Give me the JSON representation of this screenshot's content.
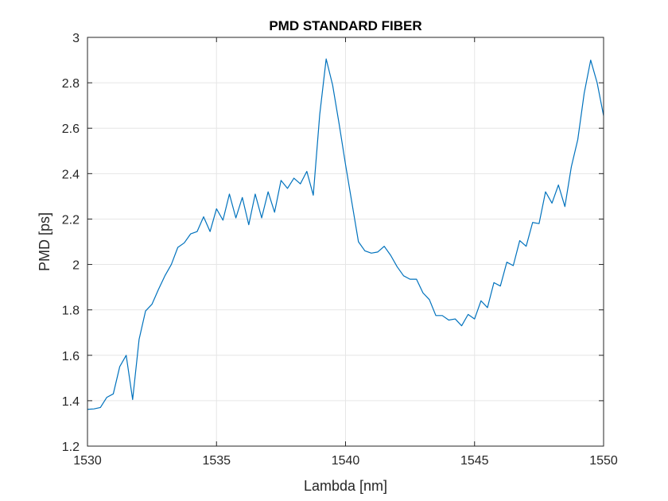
{
  "chart_data": {
    "type": "line",
    "title": "PMD STANDARD FIBER",
    "xlabel": "Lambda [nm]",
    "ylabel": "PMD [ps]",
    "xlim": [
      1530,
      1550
    ],
    "ylim": [
      1.2,
      3.0
    ],
    "x_ticks": [
      1530,
      1535,
      1540,
      1545,
      1550
    ],
    "y_ticks": [
      1.2,
      1.4,
      1.6,
      1.8,
      2,
      2.2,
      2.4,
      2.6,
      2.8,
      3
    ],
    "x_tick_labels": [
      "1530",
      "1535",
      "1540",
      "1545",
      "1550"
    ],
    "y_tick_labels": [
      "1.2",
      "1.4",
      "1.6",
      "1.8",
      "2",
      "2.2",
      "2.4",
      "2.6",
      "2.8",
      "3"
    ],
    "grid": true,
    "line_color": "#0072BD",
    "series": [
      {
        "x": [
          1530.0,
          1530.25,
          1530.5,
          1530.75,
          1531.0,
          1531.25,
          1531.5,
          1531.75,
          1532.0,
          1532.25,
          1532.5,
          1532.75,
          1533.0,
          1533.25,
          1533.5,
          1533.75,
          1534.0,
          1534.25,
          1534.5,
          1534.75,
          1535.0,
          1535.25,
          1535.5,
          1535.75,
          1536.0,
          1536.25,
          1536.5,
          1536.75,
          1537.0,
          1537.25,
          1537.5,
          1537.75,
          1538.0,
          1538.25,
          1538.5,
          1538.75,
          1539.0,
          1539.25,
          1539.5,
          1539.75,
          1540.0,
          1540.25,
          1540.5,
          1540.75,
          1541.0,
          1541.25,
          1541.5,
          1541.75,
          1542.0,
          1542.25,
          1542.5,
          1542.75,
          1543.0,
          1543.25,
          1543.5,
          1543.75,
          1544.0,
          1544.25,
          1544.5,
          1544.75,
          1545.0,
          1545.25,
          1545.5,
          1545.75,
          1546.0,
          1546.25,
          1546.5,
          1546.75,
          1547.0,
          1547.25,
          1547.5,
          1547.75,
          1548.0,
          1548.25,
          1548.5,
          1548.75,
          1549.0,
          1549.25,
          1549.5,
          1549.75,
          1550.0
        ],
        "y": [
          1.362,
          1.364,
          1.37,
          1.415,
          1.43,
          1.55,
          1.6,
          1.405,
          1.67,
          1.795,
          1.825,
          1.89,
          1.95,
          2.0,
          2.075,
          2.095,
          2.135,
          2.145,
          2.21,
          2.145,
          2.245,
          2.195,
          2.31,
          2.205,
          2.295,
          2.175,
          2.31,
          2.205,
          2.32,
          2.23,
          2.37,
          2.335,
          2.38,
          2.355,
          2.41,
          2.305,
          2.66,
          2.905,
          2.79,
          2.62,
          2.44,
          2.27,
          2.1,
          2.06,
          2.05,
          2.055,
          2.08,
          2.04,
          1.99,
          1.95,
          1.935,
          1.935,
          1.875,
          1.845,
          1.775,
          1.775,
          1.755,
          1.76,
          1.73,
          1.78,
          1.76,
          1.84,
          1.81,
          1.92,
          1.905,
          2.01,
          1.995,
          2.105,
          2.08,
          2.185,
          2.18,
          2.32,
          2.27,
          2.35,
          2.255,
          2.43,
          2.55,
          2.755,
          2.9,
          2.8,
          2.655
        ]
      }
    ]
  }
}
